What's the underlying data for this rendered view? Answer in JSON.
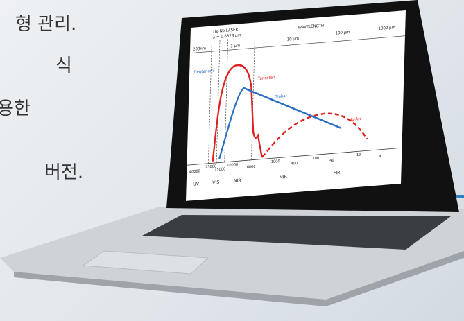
{
  "left_text": [
    "형 관리.",
    "식",
    "용한",
    "버전."
  ],
  "screen": {
    "laser": "He-Ne LASER",
    "lambda": "λ = 0.6328 μm",
    "wavelength": "WAVELENGTH",
    "top_scale": [
      "200nm",
      "1 μm",
      "10 μm",
      "100 μm",
      "1000 μm"
    ],
    "sources": [
      "Deuterium",
      "Tungsten",
      "Globar",
      "Hg-Arc"
    ],
    "bottom_scale": [
      "40000",
      "25000",
      "15000",
      "10000",
      "6000",
      "1000",
      "400",
      "100",
      "40",
      "10",
      "4"
    ],
    "regions": [
      "UV",
      "VIS",
      "NIR",
      "MIR",
      "FIR"
    ]
  }
}
